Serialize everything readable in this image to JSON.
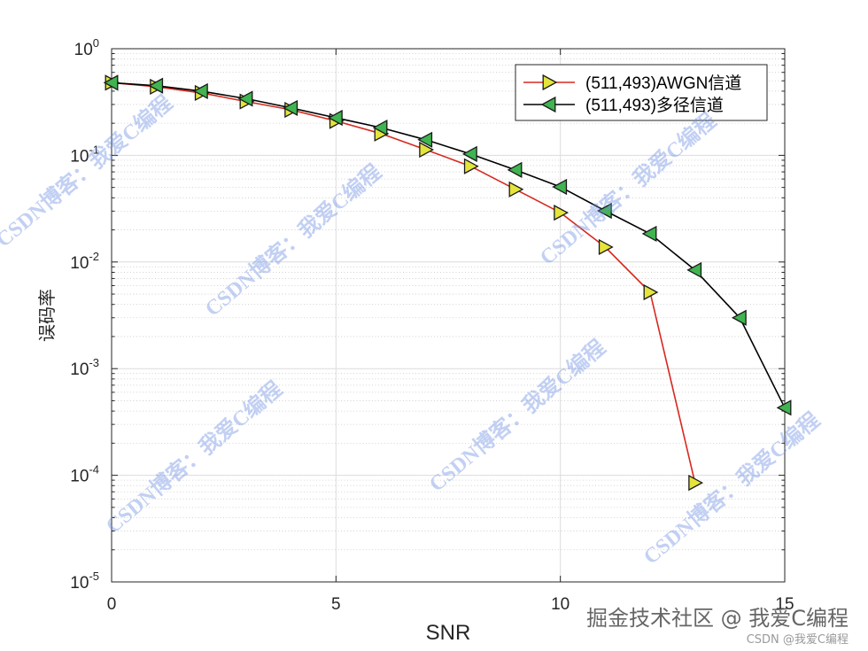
{
  "chart_data": {
    "type": "line",
    "xlabel": "SNR",
    "ylabel": "误码率",
    "xlim": [
      0,
      15
    ],
    "ylim": [
      1e-05,
      1
    ],
    "yscale": "log",
    "grid": true,
    "minor_grid_y": true,
    "legend": "top-right",
    "xticks": [
      0,
      5,
      10,
      15
    ],
    "yticks": [
      {
        "value": 1,
        "base": "10",
        "exp": "0"
      },
      {
        "value": 0.1,
        "base": "10",
        "exp": "-1"
      },
      {
        "value": 0.01,
        "base": "10",
        "exp": "-2"
      },
      {
        "value": 0.001,
        "base": "10",
        "exp": "-3"
      },
      {
        "value": 0.0001,
        "base": "10",
        "exp": "-4"
      },
      {
        "value": 1e-05,
        "base": "10",
        "exp": "-5"
      }
    ],
    "series": [
      {
        "name": "(511,493)AWGN信道",
        "line_color": "#d7281e",
        "marker": "triangle-right",
        "marker_color": "#e4e43c",
        "x": [
          0,
          1,
          2,
          3,
          4,
          5,
          6,
          7,
          8,
          9,
          10,
          11,
          12,
          13
        ],
        "y": [
          0.48,
          0.44,
          0.385,
          0.32,
          0.267,
          0.21,
          0.16,
          0.113,
          0.079,
          0.048,
          0.029,
          0.0138,
          0.0052,
          8.5e-05
        ]
      },
      {
        "name": "(511,493)多径信道",
        "line_color": "#000000",
        "marker": "triangle-left",
        "marker_color": "#40b450",
        "x": [
          0,
          1,
          2,
          3,
          4,
          5,
          6,
          7,
          8,
          9,
          10,
          11,
          12,
          13,
          14,
          15
        ],
        "y": [
          0.48,
          0.45,
          0.4,
          0.34,
          0.278,
          0.225,
          0.182,
          0.14,
          0.103,
          0.073,
          0.0506,
          0.0302,
          0.0184,
          0.0084,
          0.003,
          0.00043
        ]
      }
    ]
  },
  "watermark": {
    "diagonal": "CSDN博客：我爱C编程",
    "footer_main": "掘金技术社区 @ 我爱C编程",
    "footer_sub": "CSDN @我爱C编程"
  }
}
